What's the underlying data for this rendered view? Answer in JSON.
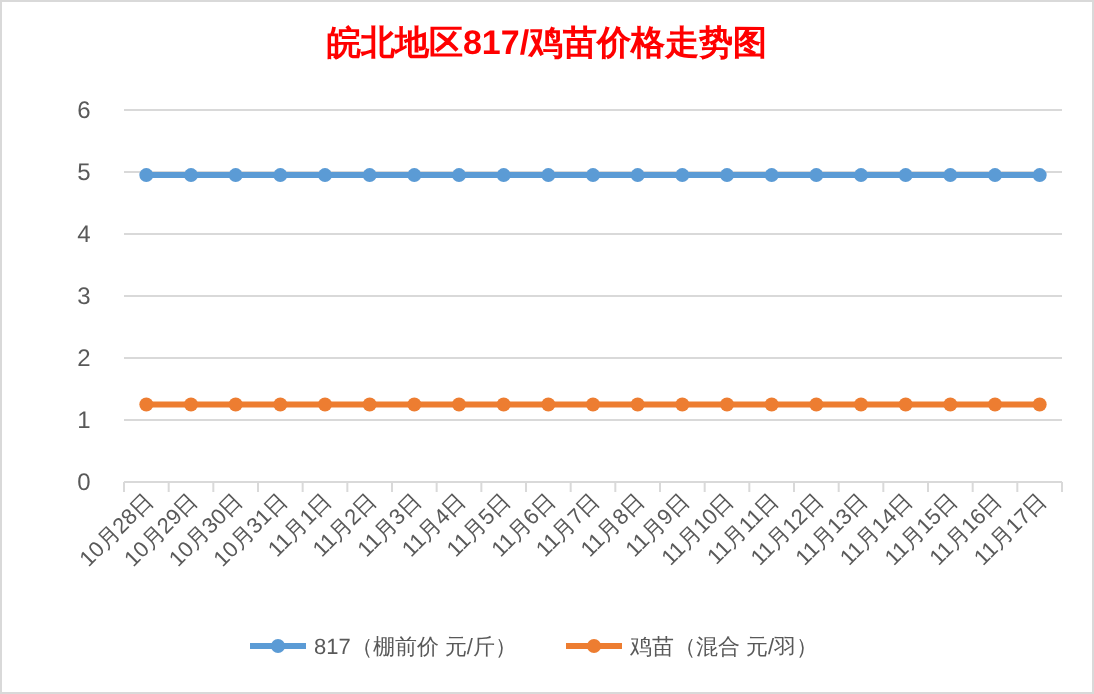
{
  "chart_data": {
    "type": "line",
    "title": "皖北地区817/鸡苗价格走势图",
    "categories": [
      "10月28日",
      "10月29日",
      "10月30日",
      "10月31日",
      "11月1日",
      "11月2日",
      "11月3日",
      "11月4日",
      "11月5日",
      "11月6日",
      "11月7日",
      "11月8日",
      "11月9日",
      "11月10日",
      "11月11日",
      "11月12日",
      "11月13日",
      "11月14日",
      "11月15日",
      "11月16日",
      "11月17日"
    ],
    "series": [
      {
        "name": "817（棚前价 元/斤）",
        "color": "#5b9bd5",
        "values": [
          4.95,
          4.95,
          4.95,
          4.95,
          4.95,
          4.95,
          4.95,
          4.95,
          4.95,
          4.95,
          4.95,
          4.95,
          4.95,
          4.95,
          4.95,
          4.95,
          4.95,
          4.95,
          4.95,
          4.95,
          4.95
        ]
      },
      {
        "name": "鸡苗（混合 元/羽）",
        "color": "#ed7d31",
        "values": [
          1.25,
          1.25,
          1.25,
          1.25,
          1.25,
          1.25,
          1.25,
          1.25,
          1.25,
          1.25,
          1.25,
          1.25,
          1.25,
          1.25,
          1.25,
          1.25,
          1.25,
          1.25,
          1.25,
          1.25,
          1.25
        ]
      }
    ],
    "ylim": [
      0,
      6
    ],
    "yticks": [
      0,
      1,
      2,
      3,
      4,
      5,
      6
    ],
    "grid": "y",
    "legend": "bottom",
    "marker": "circle"
  }
}
